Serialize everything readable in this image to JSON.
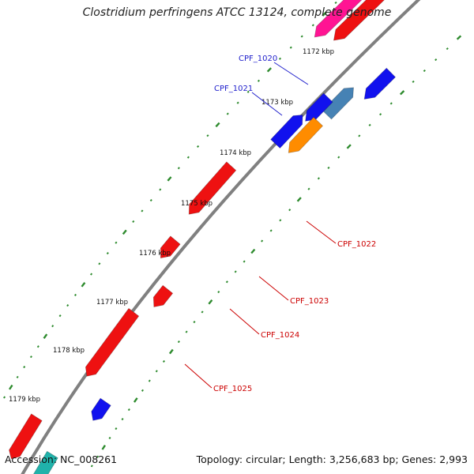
{
  "title": "Clostridium perfringens ATCC 13124, complete genome",
  "footer": {
    "accession": "Accession: NC_008261",
    "summary": "Topology: circular; Length: 3,256,683 bp; Genes: 2,993"
  },
  "colors": {
    "backbone": "#808080",
    "tick": "#2e8b2e",
    "gene_red": "#ee1111",
    "gene_blue": "#1111ee",
    "gene_pink": "#ff1493",
    "gene_orange": "#ff8c00",
    "gene_steel": "#4682b4",
    "label_blue": "#2222cc",
    "label_red": "#cc0000"
  },
  "kbp_labels": [
    "1172 kbp",
    "1173 kbp",
    "1174 kbp",
    "1175 kbp",
    "1176 kbp",
    "1177 kbp",
    "1178 kbp",
    "1179 kbp"
  ],
  "gene_labels": {
    "blue": [
      "CPF_1020",
      "CPF_1021"
    ],
    "red": [
      "CPF_1022",
      "CPF_1023",
      "CPF_1024",
      "CPF_1025"
    ]
  }
}
